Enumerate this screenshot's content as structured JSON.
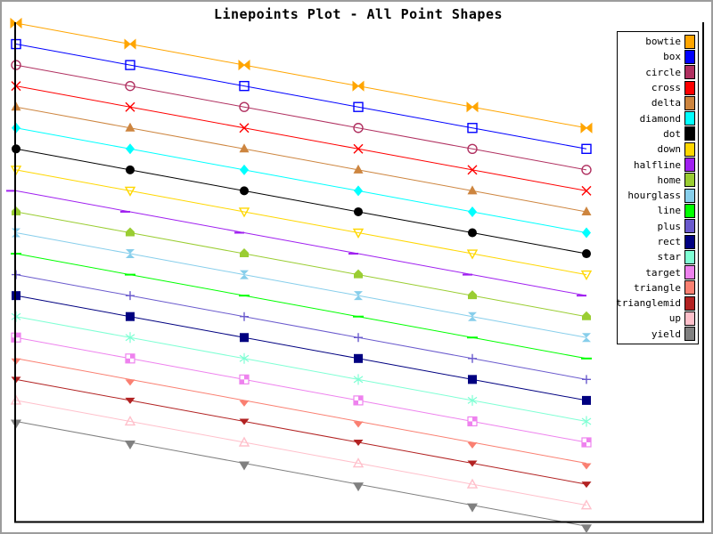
{
  "chart_data": {
    "type": "line",
    "subtype": "linespoints",
    "title": "Linepoints Plot - All Point Shapes",
    "xlabel": "",
    "ylabel": "",
    "x": [
      1,
      2,
      3,
      4,
      5,
      6
    ],
    "axis_tick_labels": "none",
    "grid": false,
    "frame_sides": "left,bottom,right",
    "legend_position": "right",
    "series": [
      {
        "name": "bowtie",
        "shape": "bowtie",
        "color": "#FFA500",
        "values": [
          25,
          24,
          23,
          22,
          21,
          20
        ]
      },
      {
        "name": "box",
        "shape": "box",
        "color": "#0000FF",
        "values": [
          24,
          23,
          22,
          21,
          20,
          19
        ]
      },
      {
        "name": "circle",
        "shape": "circle",
        "color": "#B03060",
        "values": [
          23,
          22,
          21,
          20,
          19,
          18
        ]
      },
      {
        "name": "cross",
        "shape": "cross",
        "color": "#FF0000",
        "values": [
          22,
          21,
          20,
          19,
          18,
          17
        ]
      },
      {
        "name": "delta",
        "shape": "delta",
        "color": "#CD853F",
        "values": [
          21,
          20,
          19,
          18,
          17,
          16
        ]
      },
      {
        "name": "diamond",
        "shape": "diamond",
        "color": "#00FFFF",
        "values": [
          20,
          19,
          18,
          17,
          16,
          15
        ]
      },
      {
        "name": "dot",
        "shape": "dot",
        "color": "#000000",
        "values": [
          19,
          18,
          17,
          16,
          15,
          14
        ]
      },
      {
        "name": "down",
        "shape": "down",
        "color": "#FFD700",
        "values": [
          18,
          17,
          16,
          15,
          14,
          13
        ]
      },
      {
        "name": "halfline",
        "shape": "halfline",
        "color": "#A020F0",
        "values": [
          17,
          16,
          15,
          14,
          13,
          12
        ]
      },
      {
        "name": "home",
        "shape": "home",
        "color": "#9ACD32",
        "values": [
          16,
          15,
          14,
          13,
          12,
          11
        ]
      },
      {
        "name": "hourglass",
        "shape": "hourglass",
        "color": "#87CEEB",
        "values": [
          15,
          14,
          13,
          12,
          11,
          10
        ]
      },
      {
        "name": "line",
        "shape": "line",
        "color": "#00FF00",
        "values": [
          14,
          13,
          12,
          11,
          10,
          9
        ]
      },
      {
        "name": "plus",
        "shape": "plus",
        "color": "#6A5ACD",
        "values": [
          13,
          12,
          11,
          10,
          9,
          8
        ]
      },
      {
        "name": "rect",
        "shape": "rect",
        "color": "#000080",
        "values": [
          12,
          11,
          10,
          9,
          8,
          7
        ]
      },
      {
        "name": "star",
        "shape": "star",
        "color": "#7FFFD4",
        "values": [
          11,
          10,
          9,
          8,
          7,
          6
        ]
      },
      {
        "name": "target",
        "shape": "target",
        "color": "#EE82EE",
        "values": [
          10,
          9,
          8,
          7,
          6,
          5
        ]
      },
      {
        "name": "triangle",
        "shape": "triangle",
        "color": "#FA8072",
        "values": [
          9,
          8,
          7,
          6,
          5,
          4
        ]
      },
      {
        "name": "trianglemid",
        "shape": "trianglemid",
        "color": "#B22222",
        "values": [
          8,
          7,
          6,
          5,
          4,
          3
        ]
      },
      {
        "name": "up",
        "shape": "up",
        "color": "#FFC0CB",
        "values": [
          7,
          6,
          5,
          4,
          3,
          2
        ]
      },
      {
        "name": "yield",
        "shape": "yield",
        "color": "#808080",
        "values": [
          6,
          5,
          4,
          3,
          2,
          1
        ]
      }
    ]
  },
  "colors": {
    "axis": "#000000",
    "background": "#FFFFFF",
    "outer_border": "#9C9C9C",
    "legend_border": "#000000",
    "title_text": "#000000"
  }
}
